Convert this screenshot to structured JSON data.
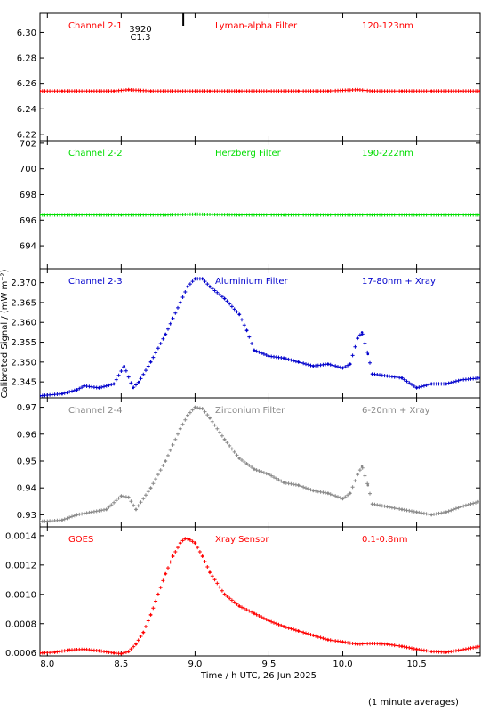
{
  "figure": {
    "xlabel": "Time / h UTC, 26 Jun 2025",
    "ylabel": "Calibrated Signal / (mW m⁻²)",
    "footnote": "(1 minute averages)",
    "xlim": [
      7.95,
      10.93
    ],
    "xticks": [
      "8.0",
      "8.5",
      "9.0",
      "9.5",
      "10.0",
      "10.5"
    ],
    "xtick_values": [
      8.0,
      8.5,
      9.0,
      9.5,
      10.0,
      10.5
    ],
    "grid": false
  },
  "chart_data": [
    {
      "type": "scatter",
      "channel": "Channel 2-1",
      "filter": "Lyman-alpha Filter",
      "band": "120-123nm",
      "color": "#ff0000",
      "ylim": [
        6.215,
        6.315
      ],
      "yticks": [
        "6.22",
        "6.24",
        "6.26",
        "6.28",
        "6.30"
      ],
      "ytick_values": [
        6.22,
        6.24,
        6.26,
        6.28,
        6.3
      ],
      "annotation": {
        "lines": [
          "3920",
          "C1.3"
        ],
        "x": 8.92
      },
      "x": [
        7.95,
        8.1,
        8.3,
        8.45,
        8.55,
        8.7,
        8.9,
        9.1,
        9.3,
        9.5,
        9.7,
        9.9,
        10.1,
        10.2,
        10.4,
        10.6,
        10.8,
        10.93
      ],
      "y": [
        6.254,
        6.254,
        6.254,
        6.254,
        6.255,
        6.254,
        6.254,
        6.254,
        6.254,
        6.254,
        6.254,
        6.254,
        6.255,
        6.254,
        6.254,
        6.254,
        6.254,
        6.254
      ]
    },
    {
      "type": "scatter",
      "channel": "Channel 2-2",
      "filter": "Herzberg Filter",
      "band": "190-222nm",
      "color": "#00dd00",
      "ylim": [
        692.2,
        702.2
      ],
      "yticks": [
        "694",
        "696",
        "698",
        "700",
        "702"
      ],
      "ytick_values": [
        694,
        696,
        698,
        700,
        702
      ],
      "x": [
        7.95,
        8.2,
        8.5,
        8.8,
        9.0,
        9.3,
        9.6,
        9.9,
        10.2,
        10.5,
        10.93
      ],
      "y": [
        696.4,
        696.4,
        696.4,
        696.4,
        696.45,
        696.4,
        696.4,
        696.4,
        696.4,
        696.4,
        696.4
      ]
    },
    {
      "type": "scatter",
      "channel": "Channel 2-3",
      "filter": "Aluminium Filter",
      "band": "17-80nm + Xray",
      "color": "#0000cc",
      "ylim": [
        2.341,
        2.3735
      ],
      "yticks": [
        "2.345",
        "2.350",
        "2.355",
        "2.360",
        "2.365",
        "2.370"
      ],
      "ytick_values": [
        2.345,
        2.35,
        2.355,
        2.36,
        2.365,
        2.37
      ],
      "x": [
        7.95,
        8.1,
        8.2,
        8.25,
        8.35,
        8.45,
        8.52,
        8.58,
        8.62,
        8.7,
        8.8,
        8.9,
        8.95,
        9.0,
        9.05,
        9.1,
        9.2,
        9.3,
        9.35,
        9.4,
        9.5,
        9.6,
        9.7,
        9.8,
        9.9,
        10.0,
        10.05,
        10.1,
        10.13,
        10.17,
        10.2,
        10.3,
        10.4,
        10.5,
        10.6,
        10.7,
        10.8,
        10.93
      ],
      "y": [
        2.3415,
        2.342,
        2.343,
        2.344,
        2.3435,
        2.3445,
        2.349,
        2.3435,
        2.345,
        2.35,
        2.357,
        2.365,
        2.369,
        2.371,
        2.371,
        2.369,
        2.366,
        2.362,
        2.358,
        2.353,
        2.3515,
        2.351,
        2.35,
        2.349,
        2.3495,
        2.3485,
        2.3495,
        2.356,
        2.3575,
        2.352,
        2.347,
        2.3465,
        2.346,
        2.3435,
        2.3445,
        2.3445,
        2.3455,
        2.346
      ]
    },
    {
      "type": "scatter",
      "channel": "Channel 2-4",
      "filter": "Zirconium Filter",
      "band": "6-20nm + Xray",
      "color": "#888888",
      "ylim": [
        0.9255,
        0.9735
      ],
      "yticks": [
        "0.93",
        "0.94",
        "0.95",
        "0.96",
        "0.97"
      ],
      "ytick_values": [
        0.93,
        0.94,
        0.95,
        0.96,
        0.97
      ],
      "x": [
        7.95,
        8.1,
        8.2,
        8.3,
        8.4,
        8.5,
        8.55,
        8.6,
        8.7,
        8.8,
        8.9,
        8.95,
        9.0,
        9.05,
        9.1,
        9.2,
        9.3,
        9.35,
        9.4,
        9.5,
        9.6,
        9.7,
        9.8,
        9.9,
        10.0,
        10.05,
        10.1,
        10.13,
        10.17,
        10.2,
        10.3,
        10.4,
        10.5,
        10.6,
        10.7,
        10.8,
        10.93
      ],
      "y": [
        0.9275,
        0.928,
        0.93,
        0.931,
        0.932,
        0.937,
        0.9365,
        0.932,
        0.94,
        0.95,
        0.962,
        0.967,
        0.97,
        0.9695,
        0.966,
        0.958,
        0.951,
        0.949,
        0.947,
        0.945,
        0.942,
        0.941,
        0.939,
        0.938,
        0.936,
        0.938,
        0.945,
        0.948,
        0.941,
        0.934,
        0.933,
        0.932,
        0.931,
        0.93,
        0.931,
        0.933,
        0.935
      ]
    },
    {
      "type": "scatter",
      "channel": "GOES",
      "filter": "Xray Sensor",
      "band": "0.1-0.8nm",
      "color": "#ff0000",
      "ylim": [
        0.00058,
        0.00146
      ],
      "yticks": [
        "0.0006",
        "0.0008",
        "0.0010",
        "0.0012",
        "0.0014"
      ],
      "ytick_values": [
        0.0006,
        0.0008,
        0.001,
        0.0012,
        0.0014
      ],
      "x": [
        7.95,
        8.05,
        8.15,
        8.25,
        8.35,
        8.45,
        8.5,
        8.55,
        8.6,
        8.65,
        8.7,
        8.75,
        8.8,
        8.85,
        8.9,
        8.93,
        8.96,
        9.0,
        9.05,
        9.1,
        9.2,
        9.3,
        9.4,
        9.5,
        9.6,
        9.7,
        9.8,
        9.9,
        10.0,
        10.1,
        10.2,
        10.3,
        10.4,
        10.5,
        10.6,
        10.7,
        10.8,
        10.93
      ],
      "y": [
        0.0006,
        0.000605,
        0.00062,
        0.000625,
        0.000615,
        0.0006,
        0.000595,
        0.00061,
        0.00066,
        0.00074,
        0.00086,
        0.001,
        0.00114,
        0.00126,
        0.00135,
        0.00138,
        0.001375,
        0.00135,
        0.00126,
        0.00115,
        0.001,
        0.00092,
        0.00087,
        0.00082,
        0.00078,
        0.00075,
        0.00072,
        0.00069,
        0.000675,
        0.00066,
        0.000665,
        0.00066,
        0.000645,
        0.000625,
        0.00061,
        0.000605,
        0.00062,
        0.000645
      ]
    }
  ]
}
